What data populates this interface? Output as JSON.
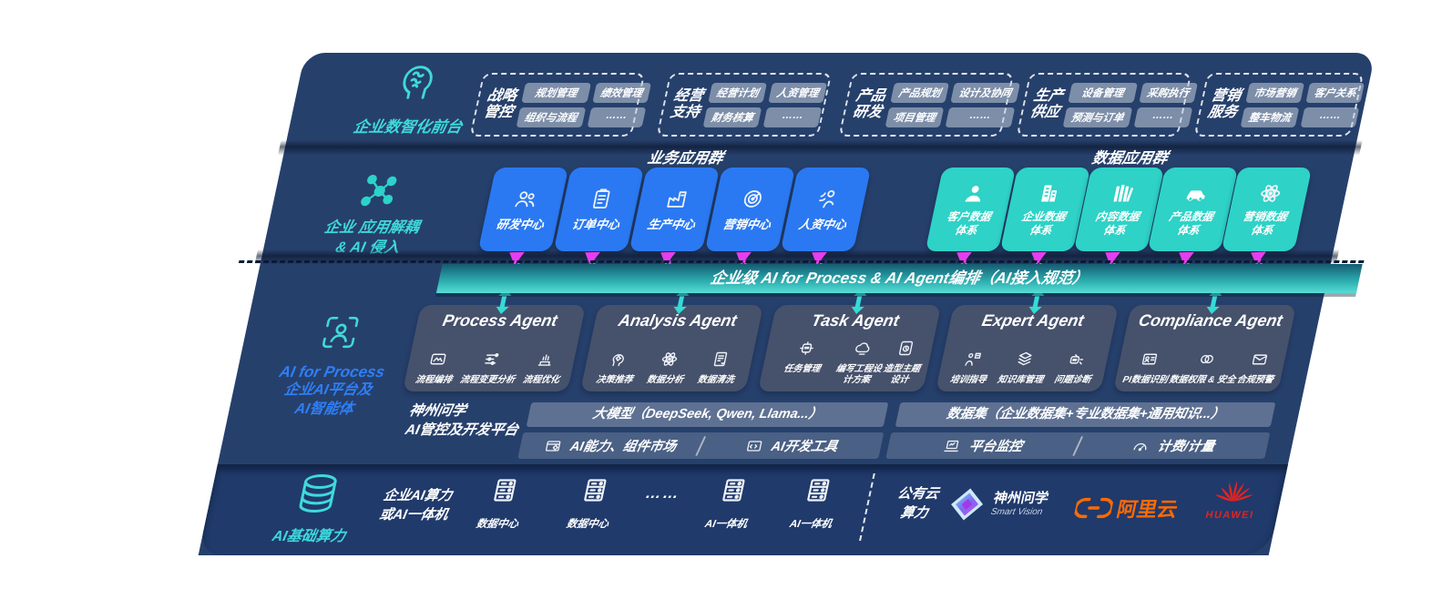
{
  "front_office": {
    "icon": "brain-icon",
    "label": "企业数智化前台",
    "groups": [
      {
        "l1": "战略",
        "l2": "管控",
        "items": [
          "规划管理",
          "绩效管理",
          "组织与流程",
          "……"
        ]
      },
      {
        "l1": "经营",
        "l2": "支持",
        "items": [
          "经营计划",
          "人资管理",
          "财务核算",
          "……"
        ]
      },
      {
        "l1": "产品",
        "l2": "研发",
        "items": [
          "产品规划",
          "设计及协同",
          "项目管理",
          "……"
        ]
      },
      {
        "l1": "生产",
        "l2": "供应",
        "items": [
          "设备管理",
          "采购执行",
          "预测与订单",
          "……"
        ]
      },
      {
        "l1": "营销",
        "l2": "服务",
        "items": [
          "市场营销",
          "客户关系",
          "整车物流",
          "……"
        ]
      }
    ]
  },
  "app_layer": {
    "icon": "molecule-icon",
    "label_l1": "企业 应用解耦",
    "label_l2": "& AI 侵入",
    "business_title": "业务应用群",
    "business_cards": [
      {
        "label": "研发中心",
        "icon": "team-icon"
      },
      {
        "label": "订单中心",
        "icon": "clipboard-icon"
      },
      {
        "label": "生产中心",
        "icon": "factory-icon"
      },
      {
        "label": "营销中心",
        "icon": "target-icon"
      },
      {
        "label": "人资中心",
        "icon": "people-icon"
      }
    ],
    "data_title": "数据应用群",
    "data_cards": [
      {
        "l1": "客户数据",
        "l2": "体系",
        "icon": "user-icon"
      },
      {
        "l1": "企业数据",
        "l2": "体系",
        "icon": "building-icon"
      },
      {
        "l1": "内容数据",
        "l2": "体系",
        "icon": "books-icon"
      },
      {
        "l1": "产品数据",
        "l2": "体系",
        "icon": "car-icon"
      },
      {
        "l1": "营销数据",
        "l2": "体系",
        "icon": "atom-icon"
      }
    ]
  },
  "orchestration": {
    "label": "企业级 AI for Process & AI Agent编排（AI接入规范）"
  },
  "ai_layer": {
    "icon": "person-focus-icon",
    "label_l1": "AI for Process",
    "label_l2": "企业AI平台及",
    "label_l3": "AI智能体",
    "agents": [
      {
        "title": "Process Agent",
        "items": [
          {
            "label": "流程编排",
            "icon": "workflow-icon"
          },
          {
            "label": "流程变更分析",
            "icon": "flow-change-icon"
          },
          {
            "label": "流程优化",
            "icon": "optimize-icon"
          }
        ]
      },
      {
        "title": "Analysis Agent",
        "items": [
          {
            "label": "决策推荐",
            "icon": "mind-icon"
          },
          {
            "label": "数据分析",
            "icon": "atom-icon"
          },
          {
            "label": "数据清洗",
            "icon": "data-clean-icon"
          }
        ]
      },
      {
        "title": "Task Agent",
        "items": [
          {
            "label": "任务管理",
            "icon": "robot-icon"
          },
          {
            "label": "编写工程设计方案",
            "icon": "cloud-doc-icon"
          },
          {
            "label": "造型主题设计",
            "icon": "design-icon"
          }
        ]
      },
      {
        "title": "Expert Agent",
        "items": [
          {
            "label": "培训指导",
            "icon": "training-icon"
          },
          {
            "label": "知识库管理",
            "icon": "knowledge-stack-icon"
          },
          {
            "label": "问题诊断",
            "icon": "diagnosis-icon"
          }
        ]
      },
      {
        "title": "Compliance Agent",
        "items": [
          {
            "label": "PI数据识别",
            "icon": "id-card-icon"
          },
          {
            "label": "数据权限 & 安全",
            "icon": "permission-icon"
          },
          {
            "label": "合规预警",
            "icon": "alert-mail-icon"
          }
        ]
      }
    ]
  },
  "platform": {
    "label_l1": "神州问学",
    "label_l2": "AI管控及开发平台",
    "model_bar": "大模型（DeepSeek, Qwen, Llama...）",
    "tools_left": [
      {
        "label": "AI能力、组件市场",
        "icon": "components-icon"
      },
      {
        "label": "AI开发工具",
        "icon": "dev-tools-icon"
      }
    ],
    "dataset_bar": "数据集（企业数据集+专业数据集+通用知识...）",
    "tools_right": [
      {
        "label": "平台监控",
        "icon": "monitor-icon"
      },
      {
        "label": "计费/计量",
        "icon": "meter-icon"
      }
    ]
  },
  "infra": {
    "icon": "database-icon",
    "label": "AI基础算力",
    "compute_l1": "企业AI算力",
    "compute_l2": "或AI一体机",
    "nodes": [
      {
        "label": "数据中心",
        "icon": "server-icon"
      },
      {
        "label": "数据中心",
        "icon": "server-icon"
      },
      {
        "label": "……",
        "icon": ""
      },
      {
        "label": "AI一体机",
        "icon": "server-icon"
      },
      {
        "label": "AI一体机",
        "icon": "server-icon"
      }
    ],
    "cloud_l1": "公有云",
    "cloud_l2": "算力",
    "vendors": [
      {
        "name": "神州问学",
        "sub": "Smart Vision",
        "icon": "smart-vision-logo"
      },
      {
        "name": "阿里云",
        "icon": "alicloud-bracket-icon"
      },
      {
        "name": "HUAWEI",
        "icon": "huawei-logo"
      }
    ]
  },
  "colors": {
    "background": "#26406c",
    "card_blue": "#2a79f2",
    "card_teal": "#2ed2c6",
    "accent_teal": "#3fd9d9",
    "accent_blue": "#2e7ff5",
    "arrow_magenta": "#e73df0",
    "bar_teal": "#2ba9ac",
    "alibaba_orange": "#ff6a00",
    "huawei_red": "#e4231f"
  }
}
